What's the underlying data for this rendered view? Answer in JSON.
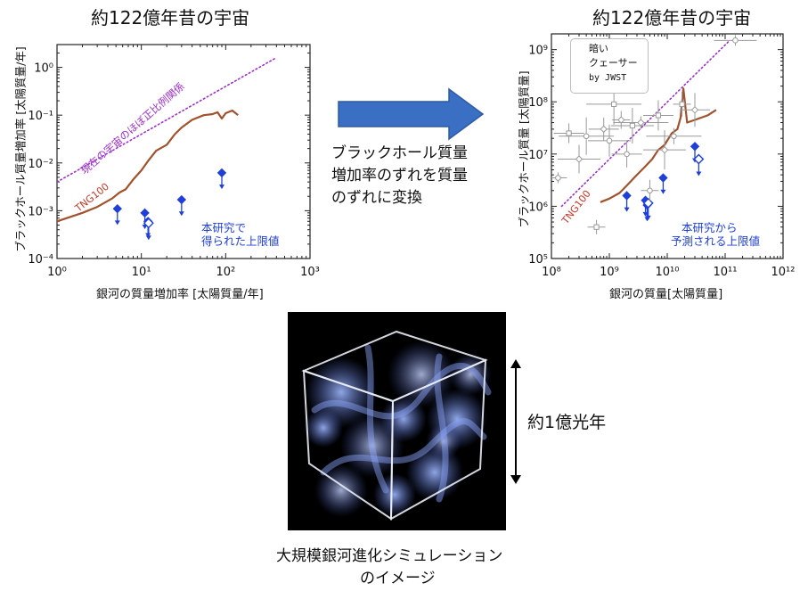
{
  "left_panel": {
    "title": "約122億年昔の宇宙",
    "ylabel": "ブラックホール質量増加率 [太陽質量/年]",
    "xlabel": "銀河の質量増加率 [太陽質量/年]",
    "proportional_label": "現在の宇宙のほぼ正比例関係",
    "tng_label": "TNG100",
    "note_line1": "本研究で",
    "note_line2": "得られた上限値",
    "x_ticks": [
      "10⁰",
      "10¹",
      "10²",
      "10³"
    ],
    "y_ticks": [
      "10⁻⁴",
      "10⁻³",
      "10⁻²",
      "10⁻¹",
      "10⁰"
    ]
  },
  "right_panel": {
    "title": "約122億年昔の宇宙",
    "ylabel": "ブラックホール質量 [太陽質量]",
    "xlabel": "銀河の質量[太陽質量]",
    "tng_label": "TNG100",
    "legend_line1": "暗い",
    "legend_line2": "クェーサー",
    "legend_line3": "by JWST",
    "note_line1": "本研究から",
    "note_line2": "予測される上限値",
    "x_ticks": [
      "10⁸",
      "10⁹",
      "10¹⁰",
      "10¹¹",
      "10¹²"
    ],
    "y_ticks": [
      "10⁵",
      "10⁶",
      "10⁷",
      "10⁸",
      "10⁹"
    ]
  },
  "middle": {
    "line1": "ブラックホール質量",
    "line2": "増加率のずれを質量",
    "line3": "のずれに変換"
  },
  "image": {
    "scale_label": "約1億光年",
    "caption_line1": "大規模銀河進化シミュレーション",
    "caption_line2": "のイメージ"
  },
  "colors": {
    "tng_line": "#a0522d",
    "upper_limit": "#1f3fd6",
    "proportional": "#9b30c8",
    "arrow_fill": "#3b6fc4",
    "quasar": "#999999"
  },
  "chart_data": [
    {
      "type": "scatter",
      "title": "約122億年昔の宇宙",
      "xlabel": "銀河の質量増加率 [太陽質量/年]",
      "ylabel": "ブラックホール質量増加率 [太陽質量/年]",
      "xscale": "log",
      "yscale": "log",
      "xlim": [
        1,
        1000
      ],
      "ylim": [
        0.0001,
        3
      ],
      "series": [
        {
          "name": "TNG100",
          "kind": "line",
          "x": [
            1,
            2,
            3,
            4.5,
            5.5,
            6.5,
            8,
            10,
            12,
            15,
            20,
            25,
            30,
            40,
            55,
            70,
            80,
            90,
            100,
            120,
            140
          ],
          "y": [
            0.0006,
            0.0009,
            0.0012,
            0.0018,
            0.0024,
            0.0028,
            0.0045,
            0.007,
            0.011,
            0.018,
            0.024,
            0.04,
            0.055,
            0.08,
            0.1,
            0.105,
            0.115,
            0.085,
            0.11,
            0.125,
            0.1
          ]
        },
        {
          "name": "現在の宇宙のほぼ正比例関係",
          "kind": "dotted",
          "x": [
            1,
            400
          ],
          "y": [
            0.004,
            1.6
          ]
        },
        {
          "name": "本研究で得られた上限値",
          "kind": "upper_limit",
          "x": [
            5.2,
            11,
            12,
            30,
            90
          ],
          "y": [
            0.0011,
            0.0009,
            0.0006,
            0.0017,
            0.0062
          ]
        },
        {
          "name": "open diamond",
          "kind": "open_upper_limit",
          "x": [
            12.2
          ],
          "y": [
            0.00055
          ]
        }
      ]
    },
    {
      "type": "scatter",
      "title": "約122億年昔の宇宙",
      "xlabel": "銀河の質量[太陽質量]",
      "ylabel": "ブラックホール質量 [太陽質量]",
      "xscale": "log",
      "yscale": "log",
      "xlim": [
        100000000,
        1000000000000
      ],
      "ylim": [
        100000,
        2000000000
      ],
      "series": [
        {
          "name": "TNG100",
          "kind": "line",
          "x": [
            700000000,
            1000000000,
            1500000000,
            2000000000,
            3000000000,
            4000000000,
            5500000000,
            7000000000,
            9000000000,
            12000000000,
            15000000000,
            17000000000,
            19000000000,
            22000000000,
            30000000000,
            50000000000,
            70000000000
          ],
          "y": [
            1200000,
            1400000,
            1800000,
            2500000,
            4000000,
            5500000,
            8000000,
            12000000,
            15000000,
            25000000,
            30000000,
            50000000,
            180000000,
            40000000,
            45000000,
            55000000,
            70000000
          ]
        },
        {
          "name": "proportional",
          "kind": "dotted",
          "x": [
            150000000,
            120000000000
          ],
          "y": [
            1000000,
            1500000000
          ]
        },
        {
          "name": "本研究から予測される上限値",
          "kind": "upper_limit",
          "x": [
            2000000000,
            4200000000,
            4500000000,
            8500000000,
            30000000000
          ],
          "y": [
            1600000,
            1300000,
            1050000,
            3500000,
            14000000
          ]
        },
        {
          "name": "open diamond",
          "kind": "open_upper_limit",
          "x": [
            4700000000,
            35000000000
          ],
          "y": [
            1150000,
            8000000
          ]
        },
        {
          "name": "暗いクェーサー by JWST",
          "kind": "scatter_errorbars",
          "x": [
            130000000,
            200000000,
            300000000,
            400000000,
            600000000,
            800000000,
            1000000000,
            1200000000,
            1600000000,
            2000000000,
            2500000000,
            3500000000,
            5000000000,
            7000000000,
            9000000000,
            13000000000,
            18000000000,
            30000000000,
            150000000000
          ],
          "y": [
            3500000,
            25000000,
            8000000,
            22000000,
            400000,
            30000000,
            18000000,
            90000000,
            45000000,
            10000000,
            35000000,
            40000000,
            2000000,
            55000000,
            12000000,
            22000000,
            90000000,
            70000000,
            1500000000
          ]
        }
      ]
    }
  ]
}
